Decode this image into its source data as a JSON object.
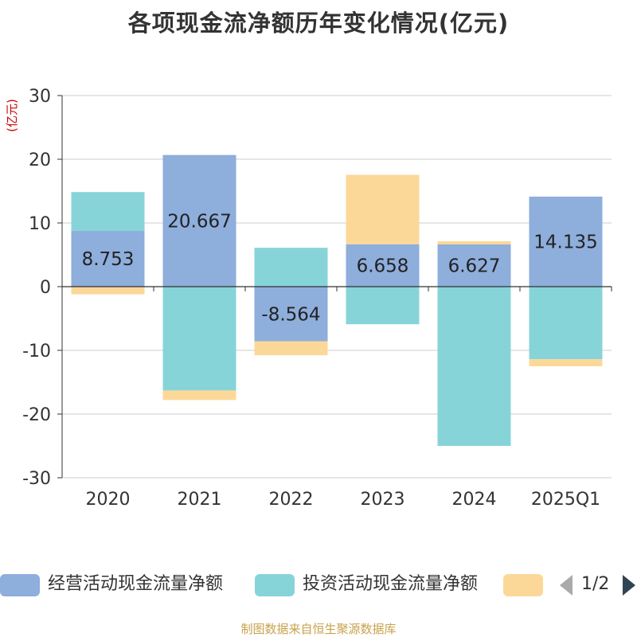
{
  "chart_data": {
    "type": "bar",
    "stacked": true,
    "title": "各项现金流净额历年变化情况(亿元)",
    "ylabel": "(亿元)",
    "xlabel": "",
    "ylim": [
      -30,
      30
    ],
    "yticks": [
      30,
      20,
      10,
      0,
      -10,
      -20,
      -30
    ],
    "grid": true,
    "categories": [
      "2020",
      "2021",
      "2022",
      "2023",
      "2024",
      "2025Q1"
    ],
    "series": [
      {
        "name": "经营活动现金流量净额",
        "color": "#8eaedc",
        "labeled": true,
        "values": [
          8.753,
          20.667,
          -8.564,
          6.658,
          6.627,
          14.135
        ]
      },
      {
        "name": "投资活动现金流量净额",
        "color": "#87d4d8",
        "labeled": false,
        "values": [
          6.1,
          -16.3,
          6.1,
          -5.9,
          -25.0,
          -11.4
        ]
      },
      {
        "name": "",
        "color": "#fcd898",
        "labeled": false,
        "values": [
          -1.2,
          -1.5,
          -2.2,
          10.9,
          0.5,
          -1.1
        ]
      }
    ]
  },
  "legend": {
    "items": [
      {
        "label": "经营活动现金流量净额",
        "color": "#8eaedc"
      },
      {
        "label": "投资活动现金流量净额",
        "color": "#87d4d8"
      },
      {
        "label": "",
        "color": "#fcd898"
      }
    ],
    "page": "1/2"
  },
  "source": "制图数据来自恒生聚源数据库"
}
